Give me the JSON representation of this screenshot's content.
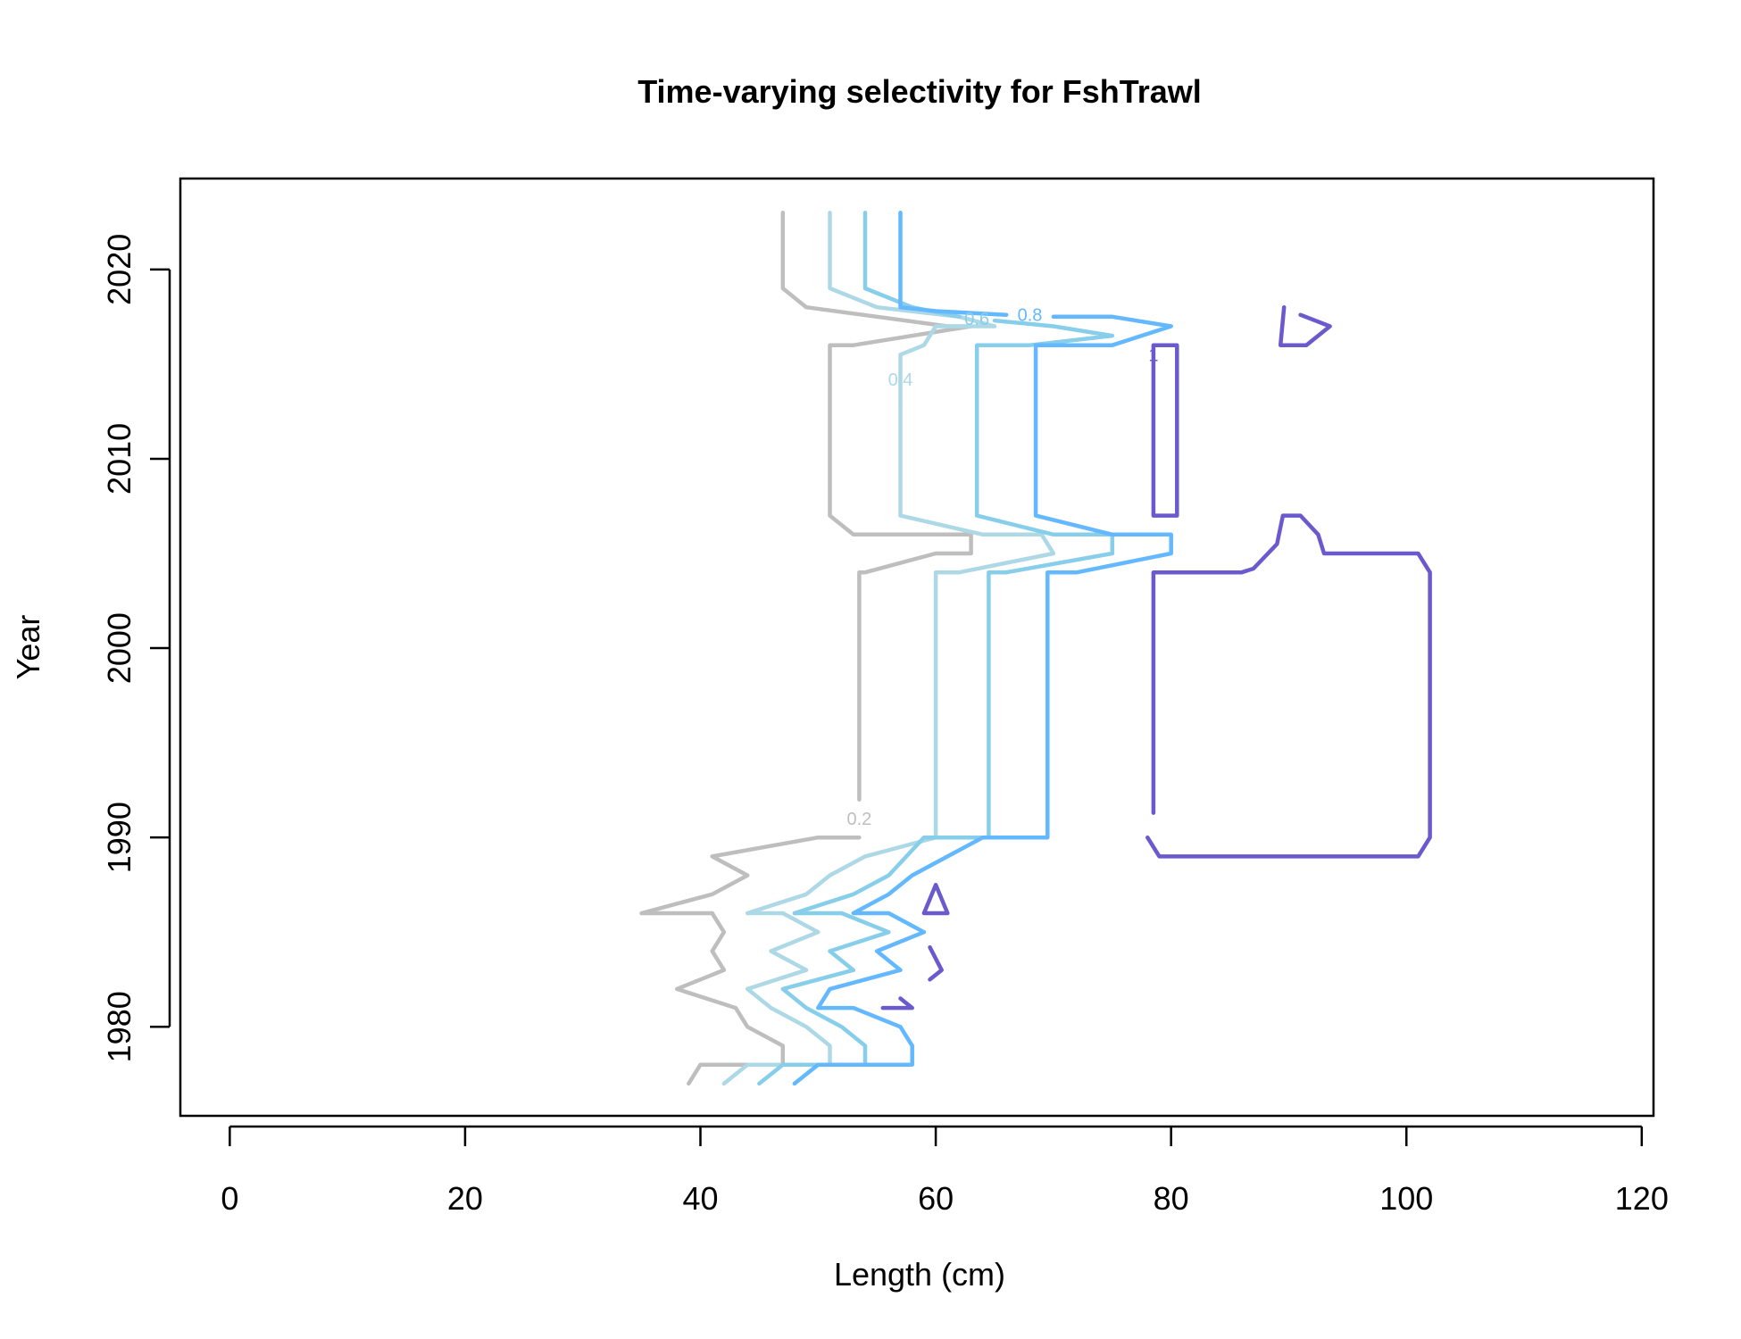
{
  "chart_data": {
    "type": "line",
    "subtype": "contour",
    "title": "Time-varying selectivity for FshTrawl",
    "xlabel": "Length (cm)",
    "ylabel": "Year",
    "xlim": [
      -4.2,
      121
    ],
    "ylim": [
      1975.3,
      2024.8
    ],
    "xticks": [
      0,
      20,
      40,
      60,
      80,
      100,
      120
    ],
    "yticks": [
      1980,
      1990,
      2000,
      2010,
      2020
    ],
    "grid": false,
    "legend": "none",
    "series": [
      {
        "level": "0.2",
        "color": "#bebebe",
        "label_at": [
          53.5,
          1991
        ],
        "paths": [
          [
            [
              47,
              2023
            ],
            [
              47,
              2019
            ],
            [
              49,
              2018
            ],
            [
              61,
              2017
            ],
            [
              63,
              2017
            ],
            [
              53,
              2016
            ],
            [
              51,
              2016
            ],
            [
              51,
              2007
            ],
            [
              53,
              2006
            ],
            [
              63,
              2006
            ],
            [
              63,
              2005
            ],
            [
              60,
              2005
            ],
            [
              54,
              2004
            ],
            [
              53.5,
              2004
            ],
            [
              53.5,
              1992
            ]
          ],
          [
            [
              53.5,
              1990
            ],
            [
              50,
              1990
            ],
            [
              41,
              1989
            ],
            [
              44,
              1988
            ],
            [
              41,
              1987
            ],
            [
              35,
              1986
            ],
            [
              41,
              1986
            ],
            [
              42,
              1985
            ],
            [
              41,
              1984
            ],
            [
              42,
              1983
            ],
            [
              38,
              1982
            ],
            [
              43,
              1981
            ],
            [
              44,
              1980
            ],
            [
              47,
              1979
            ],
            [
              47,
              1978
            ],
            [
              42,
              1978
            ],
            [
              40,
              1978
            ],
            [
              39,
              1977
            ]
          ]
        ]
      },
      {
        "level": "0.4",
        "color": "#add8e6",
        "label_at": [
          57,
          2014.2
        ],
        "paths": [
          [
            [
              51,
              2023
            ],
            [
              51,
              2019
            ],
            [
              55,
              2018
            ],
            [
              62,
              2017.5
            ],
            [
              65,
              2017
            ],
            [
              60,
              2017
            ],
            [
              59,
              2016
            ],
            [
              57,
              2015.5
            ],
            [
              57,
              2013
            ]
          ],
          [
            [
              57,
              2013
            ],
            [
              57,
              2007
            ],
            [
              64,
              2006
            ],
            [
              69,
              2006
            ],
            [
              70,
              2005
            ],
            [
              62,
              2004
            ],
            [
              60,
              2004
            ],
            [
              60,
              1990
            ],
            [
              54,
              1989
            ],
            [
              51,
              1988
            ],
            [
              49,
              1987
            ],
            [
              44,
              1986
            ],
            [
              47,
              1986
            ],
            [
              50,
              1985
            ],
            [
              46,
              1984
            ],
            [
              49,
              1983
            ],
            [
              44,
              1982
            ],
            [
              46,
              1981
            ],
            [
              49,
              1980
            ],
            [
              51,
              1979
            ],
            [
              51,
              1978
            ],
            [
              46,
              1978
            ],
            [
              44,
              1978
            ],
            [
              42,
              1977
            ]
          ]
        ]
      },
      {
        "level": "0.6",
        "color": "#87ceeb",
        "label_at": [
          63.5,
          2017.4
        ],
        "paths": [
          [
            [
              54,
              2023
            ],
            [
              54,
              2019
            ],
            [
              58,
              2018
            ],
            [
              62,
              2017.5
            ]
          ],
          [
            [
              65,
              2017.3
            ],
            [
              70,
              2017
            ],
            [
              75,
              2016.5
            ],
            [
              68,
              2016
            ],
            [
              63.5,
              2016
            ],
            [
              63.5,
              2007
            ],
            [
              70,
              2006
            ],
            [
              75,
              2006
            ],
            [
              75,
              2005
            ],
            [
              66,
              2004
            ],
            [
              64.5,
              2004
            ],
            [
              64.5,
              1990
            ],
            [
              59,
              1990
            ],
            [
              56,
              1988
            ],
            [
              53,
              1987
            ],
            [
              48,
              1986
            ],
            [
              52,
              1986
            ],
            [
              56,
              1985
            ],
            [
              51,
              1984
            ],
            [
              53,
              1983
            ],
            [
              47,
              1982
            ],
            [
              49,
              1981
            ],
            [
              52,
              1980
            ],
            [
              54,
              1979
            ],
            [
              54,
              1978
            ],
            [
              49,
              1978
            ],
            [
              47,
              1978
            ],
            [
              45,
              1977
            ]
          ]
        ]
      },
      {
        "level": "0.8",
        "color": "#63b8ff",
        "label_at": [
          68,
          2017.6
        ],
        "paths": [
          [
            [
              57,
              2023
            ],
            [
              57,
              2018
            ],
            [
              60,
              2017.8
            ],
            [
              66,
              2017.6
            ]
          ],
          [
            [
              70,
              2017.5
            ],
            [
              75,
              2017.5
            ],
            [
              80,
              2017
            ],
            [
              75,
              2016
            ],
            [
              68.5,
              2016
            ],
            [
              68.5,
              2007
            ],
            [
              75,
              2006
            ],
            [
              80,
              2006
            ],
            [
              80,
              2005
            ],
            [
              72,
              2004
            ],
            [
              69.5,
              2004
            ],
            [
              69.5,
              1990
            ],
            [
              64,
              1990
            ],
            [
              61,
              1989
            ],
            [
              58,
              1988
            ],
            [
              56,
              1987
            ],
            [
              53,
              1986
            ],
            [
              56,
              1986
            ],
            [
              59,
              1985
            ],
            [
              55,
              1984
            ],
            [
              57,
              1983
            ],
            [
              51,
              1982
            ],
            [
              50,
              1981
            ],
            [
              53,
              1981
            ],
            [
              57,
              1980
            ],
            [
              58,
              1979
            ],
            [
              58,
              1978
            ],
            [
              52,
              1978
            ],
            [
              50,
              1978
            ],
            [
              48,
              1977
            ]
          ]
        ]
      },
      {
        "level": "1",
        "color": "#6a5acd",
        "label_at": [
          78.5,
          2015.5
        ],
        "paths": [
          [
            [
              78.5,
              2014.5
            ],
            [
              78.5,
              2016
            ],
            [
              80.5,
              2016
            ],
            [
              80.5,
              2007
            ],
            [
              78.5,
              2007
            ],
            [
              78.5,
              2014.5
            ]
          ],
          [
            [
              78.5,
              1991.3
            ],
            [
              78.5,
              2004
            ],
            [
              86,
              2004
            ],
            [
              87,
              2004.2
            ],
            [
              89,
              2005.5
            ],
            [
              89.5,
              2007
            ],
            [
              91,
              2007
            ],
            [
              92.5,
              2006
            ],
            [
              93,
              2005
            ],
            [
              101,
              2005
            ],
            [
              102,
              2004
            ],
            [
              102,
              1990
            ],
            [
              101,
              1989
            ],
            [
              79,
              1989
            ],
            [
              78,
              1990
            ]
          ],
          [
            [
              89.6,
              2018
            ],
            [
              89.3,
              2016
            ],
            [
              91.5,
              2016
            ],
            [
              93.5,
              2017
            ],
            [
              91,
              2017.6
            ]
          ],
          [
            [
              59,
              1986
            ],
            [
              60,
              1987.5
            ],
            [
              61,
              1986
            ],
            [
              59,
              1986
            ]
          ],
          [
            [
              59.5,
              1984.2
            ],
            [
              60.5,
              1983
            ],
            [
              59.5,
              1982.5
            ]
          ],
          [
            [
              55.5,
              1981
            ],
            [
              58,
              1981
            ],
            [
              57,
              1981.5
            ]
          ]
        ]
      }
    ]
  }
}
